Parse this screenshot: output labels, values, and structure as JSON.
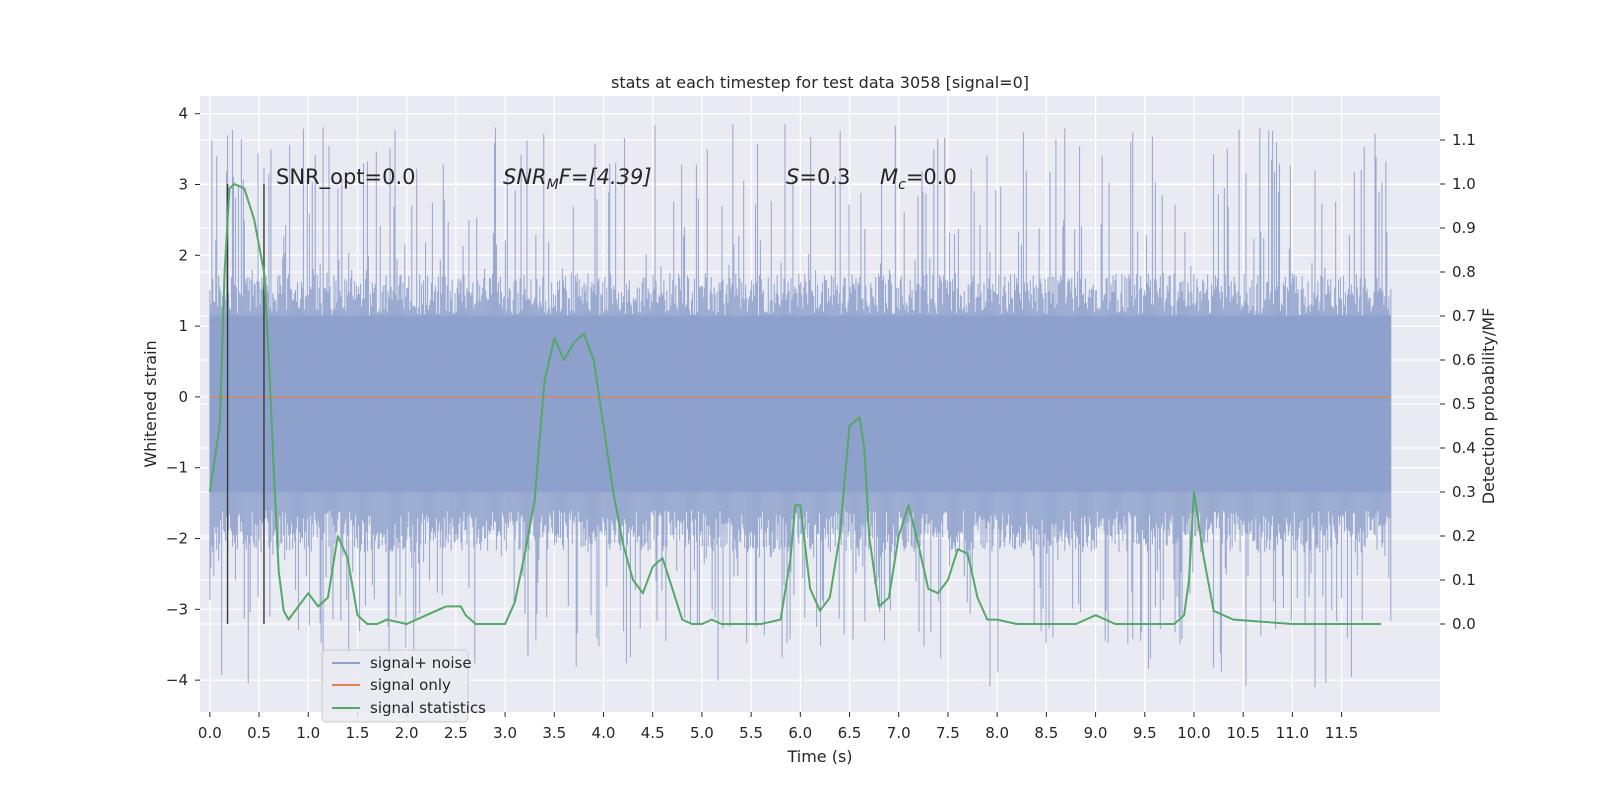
{
  "chart_data": {
    "type": "line",
    "title": "stats at each timestep for test data 3058 [signal=0]",
    "xlabel": "Time (s)",
    "ylabel_left": "Whitened strain",
    "ylabel_right": "Detection probability/MF",
    "xlim": [
      -0.1,
      12.5
    ],
    "ylim_left": [
      -4.45,
      4.25
    ],
    "ylim_right": [
      -0.2,
      1.2
    ],
    "x_ticks": [
      "0.0",
      "0.5",
      "1.0",
      "1.5",
      "2.0",
      "2.5",
      "3.0",
      "3.5",
      "4.0",
      "4.5",
      "5.0",
      "5.5",
      "6.0",
      "6.5",
      "7.0",
      "7.5",
      "8.0",
      "8.5",
      "9.0",
      "9.5",
      "10.0",
      "10.5",
      "11.0",
      "11.5"
    ],
    "y_left_ticks": [
      "4",
      "3",
      "2",
      "1",
      "0",
      "−1",
      "−2",
      "−3",
      "−4"
    ],
    "y_right_ticks": [
      "1.1",
      "1.0",
      "0.9",
      "0.8",
      "0.7",
      "0.6",
      "0.5",
      "0.4",
      "0.3",
      "0.2",
      "0.1",
      "0.0"
    ],
    "grid": true,
    "annotations": {
      "snr_opt": "SNR_opt=0.0",
      "snr_mf_base": "SNR",
      "snr_mf_sub": "M",
      "snr_mf_rest": "F=[4.39]",
      "s_sym": "S",
      "s_rest": "=0.3",
      "mc_base": "M",
      "mc_sub": "c",
      "mc_rest": "=0.0"
    },
    "vertical_markers": [
      0.18,
      0.55
    ],
    "series": [
      {
        "name": "signal+ noise",
        "color": "#8da0cb",
        "axis": "left",
        "x_range": [
          0.0,
          12.0
        ],
        "envelope_core": [
          -1.35,
          1.15
        ],
        "envelope_outer": [
          -2.2,
          1.75
        ],
        "extremes": [
          -4.1,
          3.85
        ]
      },
      {
        "name": "signal only",
        "color": "#dd8452",
        "axis": "left",
        "x": [
          0.0,
          12.0
        ],
        "values": [
          0.0,
          0.0
        ]
      },
      {
        "name": "signal statistics",
        "color": "#55a868",
        "axis": "right",
        "x": [
          0.0,
          0.1,
          0.15,
          0.2,
          0.25,
          0.35,
          0.45,
          0.55,
          0.6,
          0.65,
          0.7,
          0.75,
          0.8,
          0.9,
          1.0,
          1.1,
          1.2,
          1.3,
          1.4,
          1.5,
          1.6,
          1.7,
          1.8,
          2.0,
          2.2,
          2.4,
          2.55,
          2.6,
          2.7,
          2.8,
          3.0,
          3.1,
          3.2,
          3.3,
          3.4,
          3.5,
          3.6,
          3.7,
          3.8,
          3.9,
          4.0,
          4.1,
          4.2,
          4.3,
          4.4,
          4.5,
          4.6,
          4.7,
          4.8,
          4.9,
          5.0,
          5.1,
          5.2,
          5.4,
          5.6,
          5.8,
          5.9,
          5.95,
          6.0,
          6.1,
          6.2,
          6.3,
          6.4,
          6.5,
          6.6,
          6.65,
          6.7,
          6.8,
          6.9,
          7.0,
          7.1,
          7.2,
          7.3,
          7.4,
          7.5,
          7.6,
          7.7,
          7.8,
          7.9,
          8.0,
          8.2,
          8.5,
          8.8,
          9.0,
          9.2,
          9.5,
          9.8,
          9.9,
          9.95,
          10.0,
          10.1,
          10.2,
          10.4,
          11.0,
          11.4,
          11.8,
          11.9
        ],
        "values": [
          0.3,
          0.45,
          0.8,
          0.99,
          1.0,
          0.99,
          0.92,
          0.8,
          0.6,
          0.35,
          0.12,
          0.03,
          0.01,
          0.04,
          0.07,
          0.04,
          0.06,
          0.2,
          0.15,
          0.02,
          0.0,
          0.0,
          0.01,
          0.0,
          0.02,
          0.04,
          0.04,
          0.02,
          0.0,
          0.0,
          0.0,
          0.05,
          0.16,
          0.28,
          0.55,
          0.65,
          0.6,
          0.64,
          0.66,
          0.6,
          0.45,
          0.3,
          0.18,
          0.1,
          0.07,
          0.13,
          0.15,
          0.08,
          0.01,
          0.0,
          0.0,
          0.01,
          0.0,
          0.0,
          0.0,
          0.01,
          0.15,
          0.27,
          0.27,
          0.08,
          0.03,
          0.06,
          0.2,
          0.45,
          0.47,
          0.4,
          0.2,
          0.04,
          0.06,
          0.2,
          0.27,
          0.18,
          0.08,
          0.07,
          0.1,
          0.17,
          0.16,
          0.06,
          0.01,
          0.01,
          0.0,
          0.0,
          0.0,
          0.02,
          0.0,
          0.0,
          0.0,
          0.02,
          0.1,
          0.3,
          0.15,
          0.03,
          0.01,
          0.0,
          0.0,
          0.0,
          0.0
        ]
      }
    ],
    "legend": {
      "placement": "lower-left",
      "entries": [
        "signal+ noise",
        "signal only",
        "signal statistics"
      ]
    }
  }
}
